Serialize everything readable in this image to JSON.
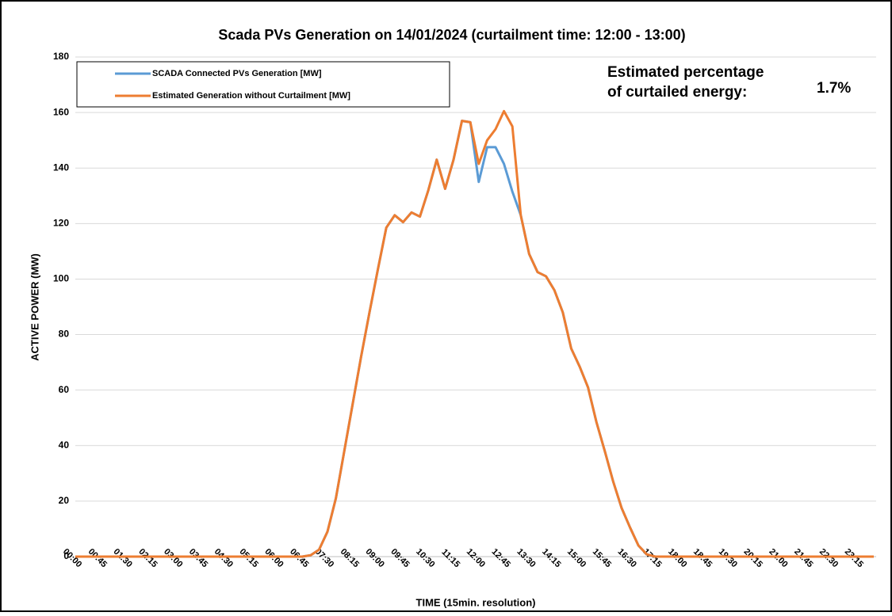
{
  "chart_data": {
    "type": "line",
    "title": "Scada PVs Generation on 14/01/2024 (curtailment time: 12:00 - 13:00)",
    "x_label": "TIME (15min. resolution)",
    "y_label": "ACTIVE POWER (MW)",
    "annotation": {
      "text_lines": [
        "Estimated percentage",
        "of curtailed energy:"
      ],
      "value": "1.7%"
    },
    "categories": [
      "00:00",
      null,
      null,
      "00:45",
      null,
      null,
      "01:30",
      null,
      null,
      "02:15",
      null,
      null,
      "03:00",
      null,
      null,
      "03:45",
      null,
      null,
      "04:30",
      null,
      null,
      "05:15",
      null,
      null,
      "06:00",
      null,
      null,
      "06:45",
      null,
      null,
      "07:30",
      null,
      null,
      "08:15",
      null,
      null,
      "09:00",
      null,
      null,
      "09:45",
      null,
      null,
      "10:30",
      null,
      null,
      "11:15",
      null,
      null,
      "12:00",
      null,
      null,
      "12:45",
      null,
      null,
      "13:30",
      null,
      null,
      "14:15",
      null,
      null,
      "15:00",
      null,
      null,
      "15:45",
      null,
      null,
      "16:30",
      null,
      null,
      "17:15",
      null,
      null,
      "18:00",
      null,
      null,
      "18:45",
      null,
      null,
      "19:30",
      null,
      null,
      "20:15",
      null,
      null,
      "21:00",
      null,
      null,
      "21:45",
      null,
      null,
      "22:30",
      null,
      null,
      "23:15",
      null,
      null
    ],
    "series": [
      {
        "name": "SCADA Connected PVs Generation [MW]",
        "color": "#5b9bd5",
        "values": [
          0,
          0,
          0,
          0,
          0,
          0,
          0,
          0,
          0,
          0,
          0,
          0,
          0,
          0,
          0,
          0,
          0,
          0,
          0,
          0,
          0,
          0,
          0,
          0,
          0,
          0,
          0,
          0,
          0.5,
          2.5,
          9,
          21,
          38,
          55,
          72,
          88,
          103.5,
          118.5,
          123,
          120.5,
          124,
          122.5,
          132,
          143,
          132.5,
          143,
          157,
          156.5,
          135,
          147.5,
          147.5,
          141.5,
          131.5,
          123,
          109,
          102.5,
          101,
          96,
          88,
          75,
          68.5,
          61,
          48.5,
          38,
          27,
          17.5,
          10.5,
          4,
          0.8,
          0,
          0,
          0,
          0,
          0,
          0,
          0,
          0,
          0,
          0,
          0,
          0,
          0,
          0,
          0,
          0,
          0,
          0,
          0,
          0,
          0,
          0,
          0,
          0,
          0,
          0,
          0
        ]
      },
      {
        "name": "Estimated Generation without Curtailment [MW]",
        "color": "#ed7d31",
        "values": [
          0,
          0,
          0,
          0,
          0,
          0,
          0,
          0,
          0,
          0,
          0,
          0,
          0,
          0,
          0,
          0,
          0,
          0,
          0,
          0,
          0,
          0,
          0,
          0,
          0,
          0,
          0,
          0,
          0.5,
          2.5,
          9,
          21,
          38,
          55,
          72,
          88,
          103.5,
          118.5,
          123,
          120.5,
          124,
          122.5,
          132,
          143,
          132.5,
          143,
          157,
          156.5,
          141.5,
          150,
          154,
          160.5,
          155,
          123,
          109,
          102.5,
          101,
          96,
          88,
          75,
          68.5,
          61,
          48.5,
          38,
          27,
          17.5,
          10.5,
          4,
          0.8,
          0,
          0,
          0,
          0,
          0,
          0,
          0,
          0,
          0,
          0,
          0,
          0,
          0,
          0,
          0,
          0,
          0,
          0,
          0,
          0,
          0,
          0,
          0,
          0,
          0,
          0,
          0
        ]
      }
    ],
    "ylim": [
      0,
      180
    ],
    "yticks": [
      0,
      20,
      40,
      60,
      80,
      100,
      120,
      140,
      160,
      180
    ],
    "grid": true,
    "legend": "upper left"
  }
}
